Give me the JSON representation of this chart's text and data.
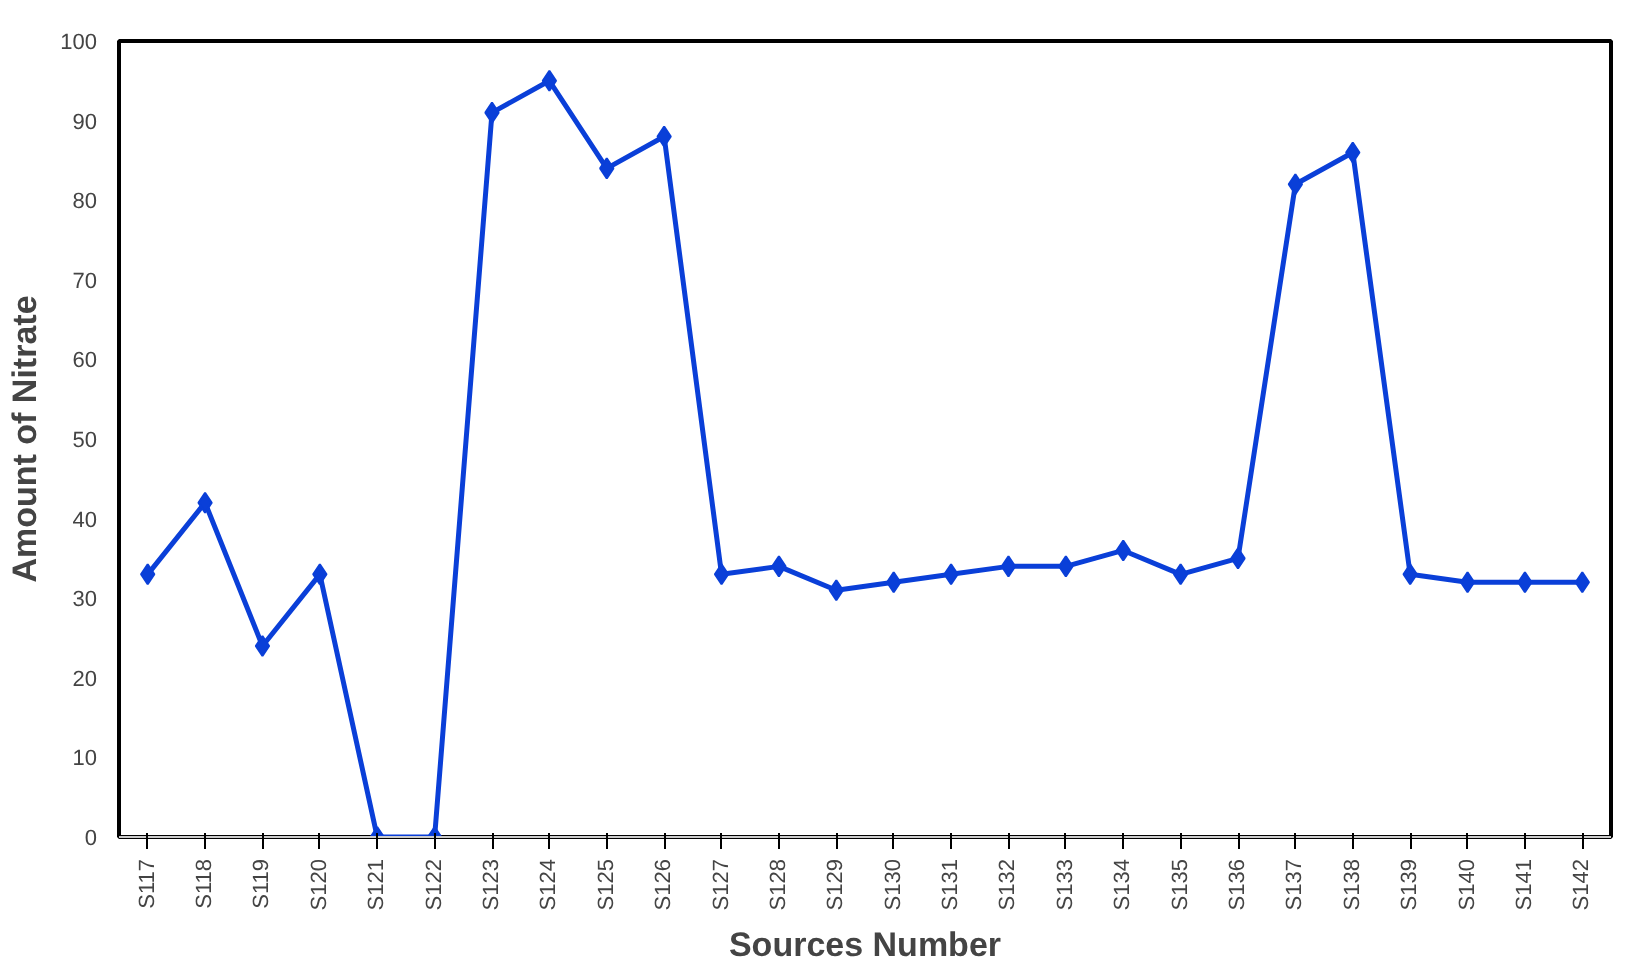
{
  "chart_data": {
    "type": "line",
    "xlabel": "Sources Number",
    "ylabel": "Amount of Nitrate",
    "categories": [
      "S117",
      "S118",
      "S119",
      "S120",
      "S121",
      "S122",
      "S123",
      "S124",
      "S125",
      "S126",
      "S127",
      "S128",
      "S129",
      "S130",
      "S131",
      "S132",
      "S133",
      "S134",
      "S135",
      "S136",
      "S137",
      "S138",
      "S139",
      "S140",
      "S141",
      "S142"
    ],
    "series": [
      {
        "color": "#0a3fd8",
        "values": [
          33,
          42,
          24,
          33,
          0,
          0,
          91,
          95,
          84,
          88,
          33,
          34,
          31,
          32,
          33,
          34,
          34,
          36,
          33,
          35,
          82,
          86,
          33,
          32,
          32,
          32
        ]
      }
    ],
    "ylim": [
      0,
      100
    ],
    "yticks": [
      0,
      10,
      20,
      30,
      40,
      50,
      60,
      70,
      80,
      90,
      100
    ],
    "grid": false,
    "marker": "diamond",
    "line_style": "solid"
  }
}
